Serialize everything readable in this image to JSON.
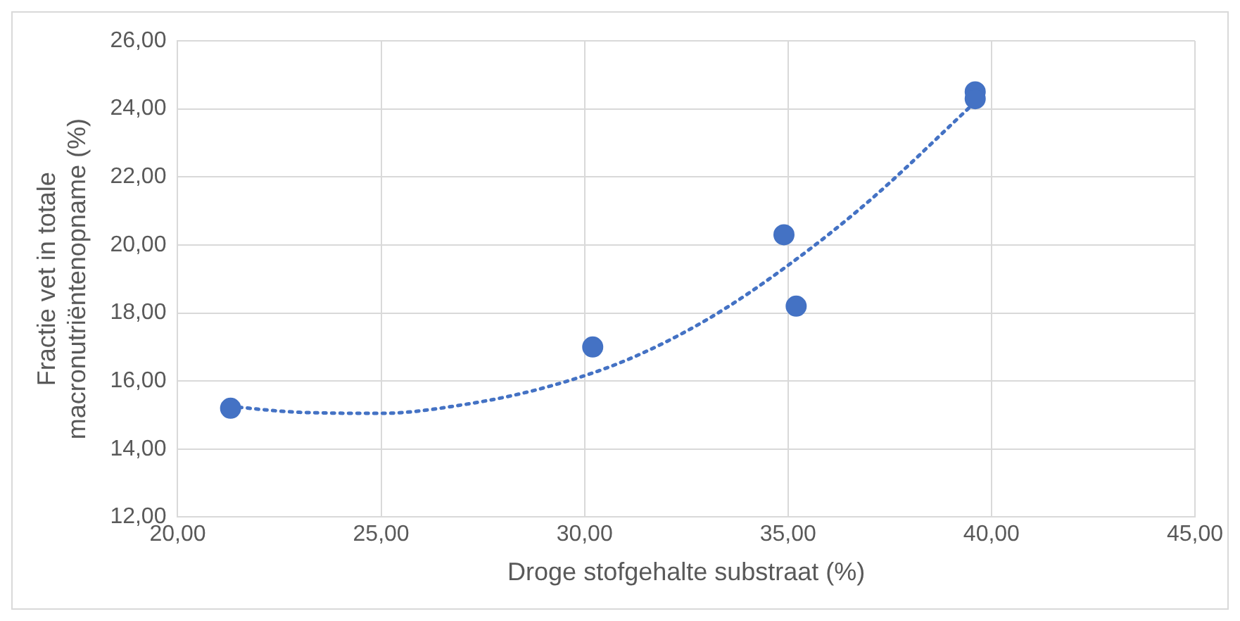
{
  "chart_data": {
    "type": "scatter",
    "xlabel": "Droge stofgehalte substraat (%)",
    "ylabel": "Fractie vet in totale\nmacronutriëntenopname (%)",
    "xlim": [
      20,
      45
    ],
    "xticks": [
      {
        "value": 20,
        "label": "20,00"
      },
      {
        "value": 25,
        "label": "25,00"
      },
      {
        "value": 30,
        "label": "30,00"
      },
      {
        "value": 35,
        "label": "35,00"
      },
      {
        "value": 40,
        "label": "40,00"
      },
      {
        "value": 45,
        "label": "45,00"
      }
    ],
    "ylim": [
      12,
      26
    ],
    "yticks": [
      {
        "value": 12,
        "label": "12,00"
      },
      {
        "value": 14,
        "label": "14,00"
      },
      {
        "value": 16,
        "label": "16,00"
      },
      {
        "value": 18,
        "label": "18,00"
      },
      {
        "value": 20,
        "label": "20,00"
      },
      {
        "value": 22,
        "label": "22,00"
      },
      {
        "value": 24,
        "label": "24,00"
      },
      {
        "value": 26,
        "label": "26,00"
      }
    ],
    "grid": true,
    "legend": false,
    "marker": "circle",
    "series": [
      {
        "color": "#4472c4",
        "x": [
          21.3,
          30.2,
          34.9,
          35.2,
          39.6,
          39.6
        ],
        "values": [
          15.2,
          17.0,
          20.3,
          18.2,
          24.5,
          24.3
        ]
      },
      {
        "type": "line",
        "color": "#4472c4",
        "line_style": "dotted",
        "marker": "none",
        "x": [
          21.3,
          23,
          25,
          27,
          29,
          31,
          33,
          35,
          37,
          39.6
        ],
        "values": [
          15.25,
          15.08,
          15.05,
          15.3,
          15.8,
          16.6,
          17.8,
          19.4,
          21.3,
          24.2
        ]
      }
    ]
  }
}
